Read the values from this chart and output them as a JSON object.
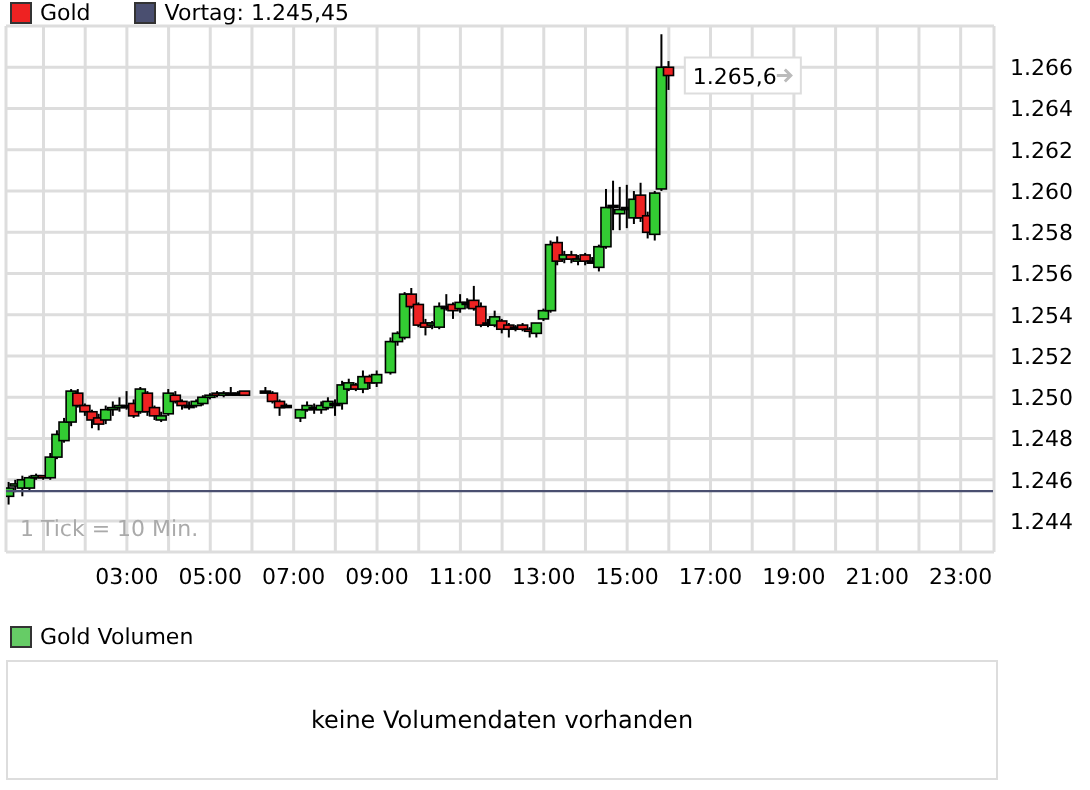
{
  "chart_data": [
    {
      "type": "candlestick",
      "legend": "top left",
      "grid": true,
      "xlim": [
        0.1,
        23.8
      ],
      "ylim": [
        1242.5,
        1268
      ],
      "xticks": [
        {
          "value": 1,
          "label": null
        },
        {
          "value": 2,
          "label": null
        },
        {
          "value": 3,
          "label": "03:00"
        },
        {
          "value": 4,
          "label": null
        },
        {
          "value": 5,
          "label": "05:00"
        },
        {
          "value": 6,
          "label": null
        },
        {
          "value": 7,
          "label": "07:00"
        },
        {
          "value": 8,
          "label": null
        },
        {
          "value": 9,
          "label": "09:00"
        },
        {
          "value": 10,
          "label": null
        },
        {
          "value": 11,
          "label": "11:00"
        },
        {
          "value": 12,
          "label": null
        },
        {
          "value": 13,
          "label": "13:00"
        },
        {
          "value": 14,
          "label": null
        },
        {
          "value": 15,
          "label": "15:00"
        },
        {
          "value": 16,
          "label": null
        },
        {
          "value": 17,
          "label": "17:00"
        },
        {
          "value": 18,
          "label": null
        },
        {
          "value": 19,
          "label": "19:00"
        },
        {
          "value": 20,
          "label": null
        },
        {
          "value": 21,
          "label": "21:00"
        },
        {
          "value": 22,
          "label": null
        },
        {
          "value": 23,
          "label": "23:00"
        }
      ],
      "yticks": [
        {
          "value": 1244,
          "label": "1.244"
        },
        {
          "value": 1246,
          "label": "1.246"
        },
        {
          "value": 1248,
          "label": "1.248"
        },
        {
          "value": 1250,
          "label": "1.250"
        },
        {
          "value": 1252,
          "label": "1.252"
        },
        {
          "value": 1254,
          "label": "1.254"
        },
        {
          "value": 1256,
          "label": "1.256"
        },
        {
          "value": 1258,
          "label": "1.258"
        },
        {
          "value": 1260,
          "label": "1.260"
        },
        {
          "value": 1262,
          "label": "1.262"
        },
        {
          "value": 1264,
          "label": "1.264"
        },
        {
          "value": 1266,
          "label": "1.266"
        }
      ],
      "ref_lines": [
        {
          "axis": "y",
          "value": 1245.45,
          "label": "Vortag: 1.245,45",
          "color": "#4a4f70"
        }
      ],
      "annotations": [
        "1 Tick = 10 Min.",
        {
          "text": "1.265,6",
          "x": 16,
          "y": 1265.6
        }
      ],
      "series": [
        {
          "name": "Gold",
          "color": "#ee2222",
          "x": [
            0.17,
            0.33,
            0.5,
            0.67,
            0.83,
            1.0,
            1.17,
            1.33,
            1.5,
            1.67,
            1.83,
            2.0,
            2.17,
            2.33,
            2.5,
            2.67,
            2.83,
            3.0,
            3.17,
            3.33,
            3.5,
            3.67,
            3.83,
            4.0,
            4.17,
            4.33,
            4.5,
            4.67,
            4.83,
            5.0,
            5.17,
            5.33,
            5.5,
            5.67,
            5.83,
            6.33,
            6.5,
            6.67,
            6.83,
            7.17,
            7.33,
            7.5,
            7.67,
            7.83,
            8.0,
            8.17,
            8.33,
            8.5,
            8.67,
            8.83,
            9.0,
            9.33,
            9.5,
            9.67,
            9.83,
            10.0,
            10.17,
            10.33,
            10.5,
            10.67,
            10.83,
            11.0,
            11.17,
            11.33,
            11.5,
            11.67,
            11.83,
            12.0,
            12.17,
            12.33,
            12.5,
            12.67,
            12.83,
            13.0,
            13.17,
            13.33,
            13.5,
            13.67,
            13.83,
            14.0,
            14.17,
            14.33,
            14.5,
            14.67,
            14.83,
            15.0,
            15.17,
            15.33,
            15.5,
            15.67,
            15.83,
            16.0
          ],
          "ohlc": [
            [
              1245.2,
              1245.9,
              1244.8,
              1245.6
            ],
            [
              1245.7,
              1246.0,
              1245.4,
              1245.8
            ],
            [
              1245.6,
              1246.2,
              1245.2,
              1246.0
            ],
            [
              1245.6,
              1246.2,
              1245.5,
              1246.1
            ],
            [
              1246.1,
              1246.3,
              1246.0,
              1246.2
            ],
            [
              1246.2,
              1246.2,
              1246.0,
              1246.1
            ],
            [
              1246.1,
              1247.3,
              1246.0,
              1247.1
            ],
            [
              1247.1,
              1248.4,
              1247.0,
              1248.2
            ],
            [
              1247.9,
              1249.0,
              1247.8,
              1248.8
            ],
            [
              1248.8,
              1250.4,
              1248.6,
              1250.3
            ],
            [
              1250.2,
              1250.4,
              1249.5,
              1249.6
            ],
            [
              1249.6,
              1249.7,
              1249.1,
              1249.3
            ],
            [
              1249.3,
              1249.4,
              1248.5,
              1248.9
            ],
            [
              1249.0,
              1249.2,
              1248.4,
              1248.7
            ],
            [
              1248.9,
              1249.6,
              1248.7,
              1249.4
            ],
            [
              1249.4,
              1249.8,
              1249.1,
              1249.5
            ],
            [
              1249.5,
              1250.0,
              1249.3,
              1249.6
            ],
            [
              1249.6,
              1250.3,
              1249.4,
              1249.6
            ],
            [
              1249.7,
              1249.9,
              1249.0,
              1249.1
            ],
            [
              1249.3,
              1250.5,
              1249.2,
              1250.4
            ],
            [
              1250.2,
              1250.3,
              1249.1,
              1249.3
            ],
            [
              1249.5,
              1249.6,
              1248.9,
              1249.1
            ],
            [
              1248.9,
              1249.3,
              1248.8,
              1249.1
            ],
            [
              1249.2,
              1250.4,
              1249.1,
              1250.2
            ],
            [
              1250.1,
              1250.3,
              1249.7,
              1249.8
            ],
            [
              1249.8,
              1249.9,
              1249.4,
              1249.6
            ],
            [
              1249.6,
              1249.8,
              1249.4,
              1249.6
            ],
            [
              1249.6,
              1249.9,
              1249.5,
              1249.8
            ],
            [
              1249.7,
              1250.1,
              1249.6,
              1250.0
            ],
            [
              1250.0,
              1250.2,
              1249.9,
              1250.1
            ],
            [
              1250.2,
              1250.3,
              1250.0,
              1250.1
            ],
            [
              1250.1,
              1250.3,
              1250.0,
              1250.2
            ],
            [
              1250.2,
              1250.5,
              1250.1,
              1250.2
            ],
            [
              1250.2,
              1250.3,
              1250.1,
              1250.2
            ],
            [
              1250.3,
              1250.3,
              1250.1,
              1250.1
            ],
            [
              1250.3,
              1250.5,
              1250.2,
              1250.3
            ],
            [
              1250.2,
              1250.3,
              1249.7,
              1249.8
            ],
            [
              1249.8,
              1249.9,
              1249.1,
              1249.5
            ],
            [
              1249.6,
              1249.7,
              1249.5,
              1249.6
            ],
            [
              1249.0,
              1249.4,
              1248.8,
              1249.4
            ],
            [
              1249.4,
              1249.8,
              1249.3,
              1249.6
            ],
            [
              1249.5,
              1249.7,
              1249.2,
              1249.5
            ],
            [
              1249.4,
              1249.8,
              1249.2,
              1249.6
            ],
            [
              1249.5,
              1250.0,
              1249.4,
              1249.8
            ],
            [
              1249.7,
              1249.9,
              1249.1,
              1249.7
            ],
            [
              1249.7,
              1250.8,
              1249.4,
              1250.6
            ],
            [
              1250.4,
              1250.9,
              1250.3,
              1250.7
            ],
            [
              1250.6,
              1250.7,
              1250.3,
              1250.4
            ],
            [
              1250.4,
              1251.3,
              1250.2,
              1251.0
            ],
            [
              1251.0,
              1251.1,
              1250.4,
              1250.7
            ],
            [
              1250.7,
              1251.3,
              1250.5,
              1251.1
            ],
            [
              1251.2,
              1252.9,
              1251.1,
              1252.7
            ],
            [
              1252.7,
              1253.2,
              1252.5,
              1253.1
            ],
            [
              1252.9,
              1255.1,
              1252.8,
              1255.0
            ],
            [
              1255.0,
              1255.3,
              1254.3,
              1254.4
            ],
            [
              1254.5,
              1254.6,
              1253.4,
              1253.5
            ],
            [
              1253.6,
              1253.8,
              1253.0,
              1253.4
            ],
            [
              1253.5,
              1253.7,
              1253.3,
              1253.6
            ],
            [
              1253.4,
              1254.6,
              1253.3,
              1254.4
            ],
            [
              1254.4,
              1255.0,
              1254.2,
              1254.4
            ],
            [
              1254.5,
              1254.6,
              1253.8,
              1254.2
            ],
            [
              1254.3,
              1255.0,
              1254.1,
              1254.6
            ],
            [
              1254.6,
              1254.8,
              1254.3,
              1254.6
            ],
            [
              1254.7,
              1255.4,
              1254.2,
              1254.3
            ],
            [
              1254.4,
              1254.6,
              1253.4,
              1253.5
            ],
            [
              1253.6,
              1253.8,
              1253.4,
              1253.6
            ],
            [
              1253.5,
              1254.2,
              1253.4,
              1253.9
            ],
            [
              1253.7,
              1253.8,
              1253.1,
              1253.3
            ],
            [
              1253.5,
              1253.6,
              1252.9,
              1253.3
            ],
            [
              1253.4,
              1253.5,
              1253.2,
              1253.4
            ],
            [
              1253.5,
              1253.6,
              1253.2,
              1253.3
            ],
            [
              1253.3,
              1253.4,
              1252.9,
              1253.2
            ],
            [
              1253.1,
              1253.6,
              1252.9,
              1253.6
            ],
            [
              1253.8,
              1254.3,
              1253.7,
              1254.2
            ],
            [
              1254.2,
              1257.6,
              1254.1,
              1257.4
            ],
            [
              1257.5,
              1257.8,
              1256.4,
              1256.6
            ],
            [
              1256.7,
              1257.1,
              1256.5,
              1256.9
            ],
            [
              1256.9,
              1257.1,
              1256.5,
              1256.7
            ],
            [
              1256.6,
              1256.9,
              1256.4,
              1256.7
            ],
            [
              1256.9,
              1257.0,
              1256.4,
              1256.6
            ],
            [
              1256.6,
              1256.8,
              1256.5,
              1256.6
            ],
            [
              1256.3,
              1257.4,
              1256.1,
              1257.3
            ],
            [
              1257.3,
              1260.1,
              1257.2,
              1259.2
            ],
            [
              1259.3,
              1260.5,
              1258.1,
              1259.3
            ],
            [
              1258.9,
              1260.2,
              1258.1,
              1259.1
            ],
            [
              1259.2,
              1260.3,
              1258.2,
              1259.2
            ],
            [
              1258.7,
              1260.0,
              1258.4,
              1259.6
            ],
            [
              1259.8,
              1260.4,
              1258.5,
              1258.7
            ],
            [
              1258.8,
              1259.0,
              1257.7,
              1258.0
            ],
            [
              1257.9,
              1260.0,
              1257.6,
              1259.9
            ],
            [
              1260.1,
              1267.6,
              1260.0,
              1266.0
            ],
            [
              1266.0,
              1266.3,
              1264.9,
              1265.6
            ]
          ],
          "colors": [
            "#33cc33",
            "#33cc33",
            "#33cc33",
            "#33cc33",
            "#33cc33",
            "#ee2222",
            "#33cc33",
            "#33cc33",
            "#33cc33",
            "#33cc33",
            "#ee2222",
            "#ee2222",
            "#ee2222",
            "#ee2222",
            "#33cc33",
            "#33cc33",
            "#33cc33",
            "#000000",
            "#ee2222",
            "#33cc33",
            "#ee2222",
            "#ee2222",
            "#33cc33",
            "#33cc33",
            "#ee2222",
            "#ee2222",
            "#000000",
            "#33cc33",
            "#33cc33",
            "#33cc33",
            "#ee2222",
            "#33cc33",
            "#000000",
            "#000000",
            "#ee2222",
            "#000000",
            "#ee2222",
            "#ee2222",
            "#000000",
            "#33cc33",
            "#33cc33",
            "#000000",
            "#33cc33",
            "#33cc33",
            "#000000",
            "#33cc33",
            "#33cc33",
            "#ee2222",
            "#33cc33",
            "#ee2222",
            "#33cc33",
            "#33cc33",
            "#33cc33",
            "#33cc33",
            "#ee2222",
            "#ee2222",
            "#ee2222",
            "#33cc33",
            "#33cc33",
            "#000000",
            "#ee2222",
            "#33cc33",
            "#000000",
            "#ee2222",
            "#ee2222",
            "#000000",
            "#33cc33",
            "#ee2222",
            "#ee2222",
            "#000000",
            "#ee2222",
            "#ee2222",
            "#33cc33",
            "#33cc33",
            "#33cc33",
            "#ee2222",
            "#33cc33",
            "#ee2222",
            "#33cc33",
            "#ee2222",
            "#000000",
            "#33cc33",
            "#33cc33",
            "#000000",
            "#33cc33",
            "#000000",
            "#33cc33",
            "#ee2222",
            "#ee2222",
            "#33cc33",
            "#33cc33",
            "#ee2222"
          ]
        }
      ]
    },
    {
      "type": "other",
      "title": "Gold Volumen",
      "color": "#66cc66",
      "annotations": [
        "keine Volumendaten vorhanden"
      ]
    }
  ]
}
